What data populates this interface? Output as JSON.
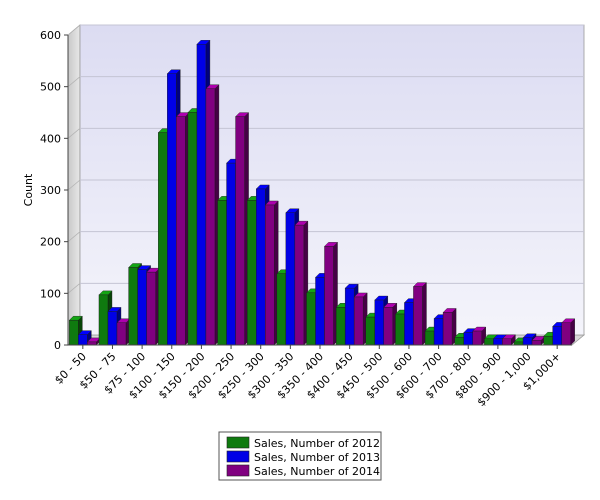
{
  "chart_data": {
    "type": "bar",
    "title": "",
    "xlabel": "",
    "ylabel": "Count",
    "ylim": [
      0,
      600
    ],
    "yticks": [
      0,
      100,
      200,
      300,
      400,
      500,
      600
    ],
    "grid": true,
    "legend_position": "bottom-center",
    "categories": [
      "$0 - 50",
      "$50 - 75",
      "$75 - 100",
      "$100 - 150",
      "$150 - 200",
      "$200 - 250",
      "$250 - 300",
      "$300 - 350",
      "$350 - 400",
      "$400 - 450",
      "$450 - 500",
      "$500 - 600",
      "$600 - 700",
      "$700 - 800",
      "$800 - 900",
      "$900 - 1,000",
      "$1,000+"
    ],
    "series": [
      {
        "name": "Sales, Number of 2012",
        "color": "#0f7a0f",
        "values": [
          48,
          97,
          150,
          411,
          450,
          280,
          280,
          138,
          101,
          73,
          54,
          60,
          27,
          15,
          12,
          6,
          17
        ]
      },
      {
        "name": "Sales, Number of 2013",
        "color": "#0000e6",
        "values": [
          20,
          65,
          146,
          525,
          582,
          352,
          302,
          256,
          131,
          110,
          87,
          82,
          51,
          24,
          12,
          14,
          36
        ]
      },
      {
        "name": "Sales, Number of 2014",
        "color": "#800080",
        "values": [
          6,
          43,
          141,
          442,
          496,
          442,
          271,
          232,
          191,
          93,
          73,
          113,
          63,
          27,
          12,
          9,
          43
        ]
      }
    ]
  }
}
